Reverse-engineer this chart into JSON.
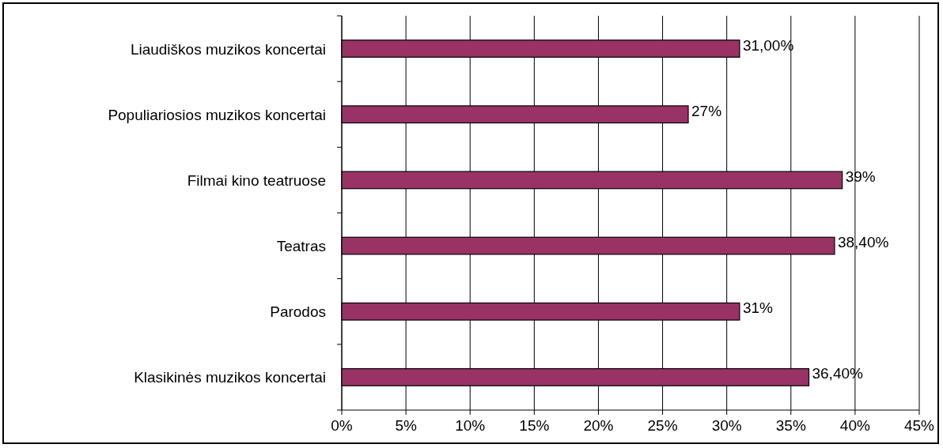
{
  "chart_data": {
    "type": "bar",
    "orientation": "horizontal",
    "categories": [
      "Liaudiškos muzikos koncertai",
      "Populiariosios muzikos koncertai",
      "Filmai kino teatruose",
      "Teatras",
      "Parodos",
      "Klasikinės muzikos koncertai"
    ],
    "values": [
      31,
      27,
      39,
      38.4,
      31,
      36.4
    ],
    "value_labels": [
      "31,00%",
      "27%",
      "39%",
      "38,40%",
      "31%",
      "36,40%"
    ],
    "color": "#993366",
    "xlim": [
      0,
      45
    ],
    "xticks": [
      {
        "value": 0,
        "label": "0%"
      },
      {
        "value": 5,
        "label": "5%"
      },
      {
        "value": 10,
        "label": "10%"
      },
      {
        "value": 15,
        "label": "15%"
      },
      {
        "value": 20,
        "label": "20%"
      },
      {
        "value": 25,
        "label": "25%"
      },
      {
        "value": 30,
        "label": "30%"
      },
      {
        "value": 35,
        "label": "35%"
      },
      {
        "value": 40,
        "label": "40%"
      },
      {
        "value": 45,
        "label": "45%"
      }
    ],
    "grid": "x"
  }
}
